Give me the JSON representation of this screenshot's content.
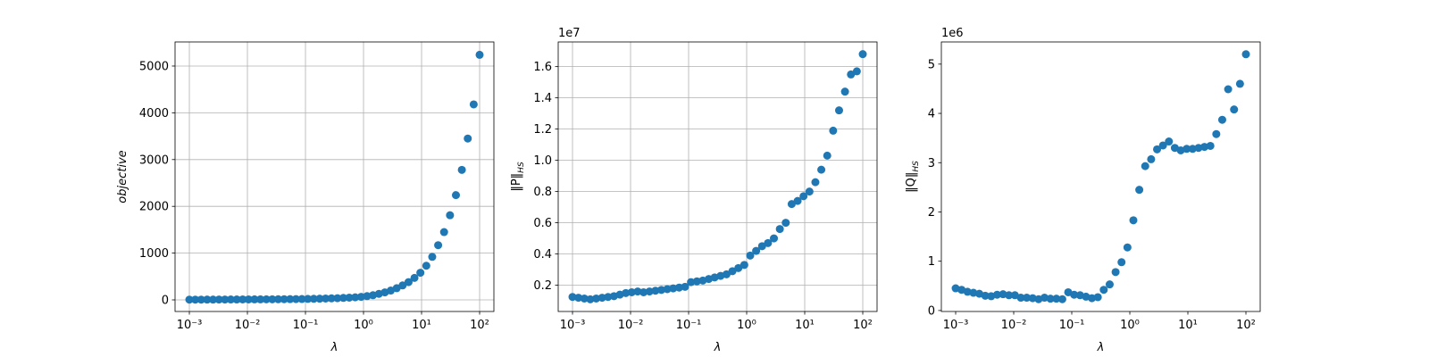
{
  "chart_data": [
    {
      "type": "scatter",
      "xlabel": "λ",
      "ylabel": "objective",
      "log_x": true,
      "grid": true,
      "color": "#1f77b4",
      "x": [
        0.001,
        0.0012649,
        0.0016,
        0.0020236,
        0.0025595,
        0.0032375,
        0.0040949,
        0.0051795,
        0.0065513,
        0.0082864,
        0.010481,
        0.013257,
        0.016768,
        0.02121,
        0.026827,
        0.033932,
        0.042919,
        0.054287,
        0.068665,
        0.086851,
        0.10985,
        0.13895,
        0.17575,
        0.2223,
        0.28118,
        0.35565,
        0.44984,
        0.56899,
        0.71969,
        0.9103,
        1.1514,
        1.4563,
        1.8421,
        2.33,
        2.9471,
        3.7276,
        4.7149,
        5.9636,
        7.5431,
        9.541,
        12.068,
        15.264,
        19.307,
        24.421,
        30.888,
        39.069,
        49.417,
        62.506,
        79.06,
        100
      ],
      "values": [
        5,
        6,
        6,
        7,
        7,
        8,
        8,
        9,
        9,
        10,
        10,
        11,
        11,
        12,
        13,
        14,
        15,
        16,
        17,
        19,
        21,
        23,
        26,
        29,
        33,
        37,
        42,
        48,
        55,
        65,
        80,
        100,
        130,
        160,
        200,
        250,
        310,
        380,
        470,
        580,
        730,
        920,
        1170,
        1450,
        1810,
        2240,
        2780,
        3450,
        4180,
        5240
      ],
      "xlim": [
        0.000567,
        176.2
      ],
      "xticks": [
        {
          "value": 0.001,
          "label": "10⁻³"
        },
        {
          "value": 0.01,
          "label": "10⁻²"
        },
        {
          "value": 0.1,
          "label": "10⁻¹"
        },
        {
          "value": 1,
          "label": "10⁰"
        },
        {
          "value": 10,
          "label": "10¹"
        },
        {
          "value": 100,
          "label": "10²"
        }
      ],
      "ylim": [
        -248,
        5515
      ],
      "yticks": [
        0,
        1000,
        2000,
        3000,
        4000,
        5000
      ]
    },
    {
      "type": "scatter",
      "xlabel": "λ",
      "ylabel": [
        "‖P‖",
        "HS"
      ],
      "offset_text": "1e7",
      "log_x": true,
      "grid": true,
      "color": "#1f77b4",
      "x": [
        0.001,
        0.0012649,
        0.0016,
        0.0020236,
        0.0025595,
        0.0032375,
        0.0040949,
        0.0051795,
        0.0065513,
        0.0082864,
        0.010481,
        0.013257,
        0.016768,
        0.02121,
        0.026827,
        0.033932,
        0.042919,
        0.054287,
        0.068665,
        0.086851,
        0.10985,
        0.13895,
        0.17575,
        0.2223,
        0.28118,
        0.35565,
        0.44984,
        0.56899,
        0.71969,
        0.9103,
        1.1514,
        1.4563,
        1.8421,
        2.33,
        2.9471,
        3.7276,
        4.7149,
        5.9636,
        7.5431,
        9.541,
        12.068,
        15.264,
        19.307,
        24.421,
        30.888,
        39.069,
        49.417,
        62.506,
        79.06,
        100
      ],
      "values": [
        0.125,
        0.12,
        0.115,
        0.11,
        0.115,
        0.12,
        0.125,
        0.13,
        0.14,
        0.15,
        0.155,
        0.16,
        0.155,
        0.16,
        0.165,
        0.17,
        0.175,
        0.18,
        0.185,
        0.19,
        0.22,
        0.225,
        0.23,
        0.24,
        0.25,
        0.26,
        0.27,
        0.29,
        0.31,
        0.33,
        0.39,
        0.42,
        0.45,
        0.47,
        0.5,
        0.56,
        0.6,
        0.72,
        0.74,
        0.77,
        0.8,
        0.86,
        0.94,
        1.03,
        1.19,
        1.32,
        1.44,
        1.55,
        1.57,
        1.68
      ],
      "xlim": [
        0.000567,
        176.2
      ],
      "xticks": [
        {
          "value": 0.001,
          "label": "10⁻³"
        },
        {
          "value": 0.01,
          "label": "10⁻²"
        },
        {
          "value": 0.1,
          "label": "10⁻¹"
        },
        {
          "value": 1,
          "label": "10⁰"
        },
        {
          "value": 10,
          "label": "10¹"
        },
        {
          "value": 100,
          "label": "10²"
        }
      ],
      "ylim": [
        0.032,
        1.758
      ],
      "yticks": [
        0.2,
        0.4,
        0.6,
        0.8,
        {
          "value": 1,
          "label": "1.0"
        },
        1.2,
        1.4,
        1.6
      ]
    },
    {
      "type": "scatter",
      "xlabel": "λ",
      "ylabel": [
        "‖Q‖",
        "HS"
      ],
      "offset_text": "1e6",
      "log_x": true,
      "grid": false,
      "color": "#1f77b4",
      "x": [
        0.001,
        0.0012649,
        0.0016,
        0.0020236,
        0.0025595,
        0.0032375,
        0.0040949,
        0.0051795,
        0.0065513,
        0.0082864,
        0.010481,
        0.013257,
        0.016768,
        0.02121,
        0.026827,
        0.033932,
        0.042919,
        0.054287,
        0.068665,
        0.086851,
        0.10985,
        0.13895,
        0.17575,
        0.2223,
        0.28118,
        0.35565,
        0.44984,
        0.56899,
        0.71969,
        0.9103,
        1.1514,
        1.4563,
        1.8421,
        2.33,
        2.9471,
        3.7276,
        4.7149,
        5.9636,
        7.5431,
        9.541,
        12.068,
        15.264,
        19.307,
        24.421,
        30.888,
        39.069,
        49.417,
        62.506,
        79.06,
        100
      ],
      "values": [
        0.45,
        0.42,
        0.38,
        0.36,
        0.34,
        0.3,
        0.29,
        0.32,
        0.33,
        0.31,
        0.31,
        0.26,
        0.26,
        0.25,
        0.23,
        0.26,
        0.24,
        0.24,
        0.23,
        0.37,
        0.32,
        0.31,
        0.28,
        0.25,
        0.27,
        0.42,
        0.53,
        0.78,
        0.98,
        1.28,
        1.83,
        2.45,
        2.93,
        3.07,
        3.27,
        3.35,
        3.43,
        3.3,
        3.25,
        3.28,
        3.28,
        3.3,
        3.32,
        3.34,
        3.58,
        3.87,
        4.49,
        4.08,
        4.6,
        5.2
      ],
      "xlim": [
        0.000567,
        176.2
      ],
      "xticks": [
        {
          "value": 0.001,
          "label": "10⁻³"
        },
        {
          "value": 0.01,
          "label": "10⁻²"
        },
        {
          "value": 0.1,
          "label": "10⁻¹"
        },
        {
          "value": 1,
          "label": "10⁰"
        },
        {
          "value": 10,
          "label": "10¹"
        },
        {
          "value": 100,
          "label": "10²"
        }
      ],
      "ylim": [
        -0.02,
        5.45
      ],
      "yticks": [
        0,
        1,
        2,
        3,
        4,
        5
      ]
    }
  ]
}
